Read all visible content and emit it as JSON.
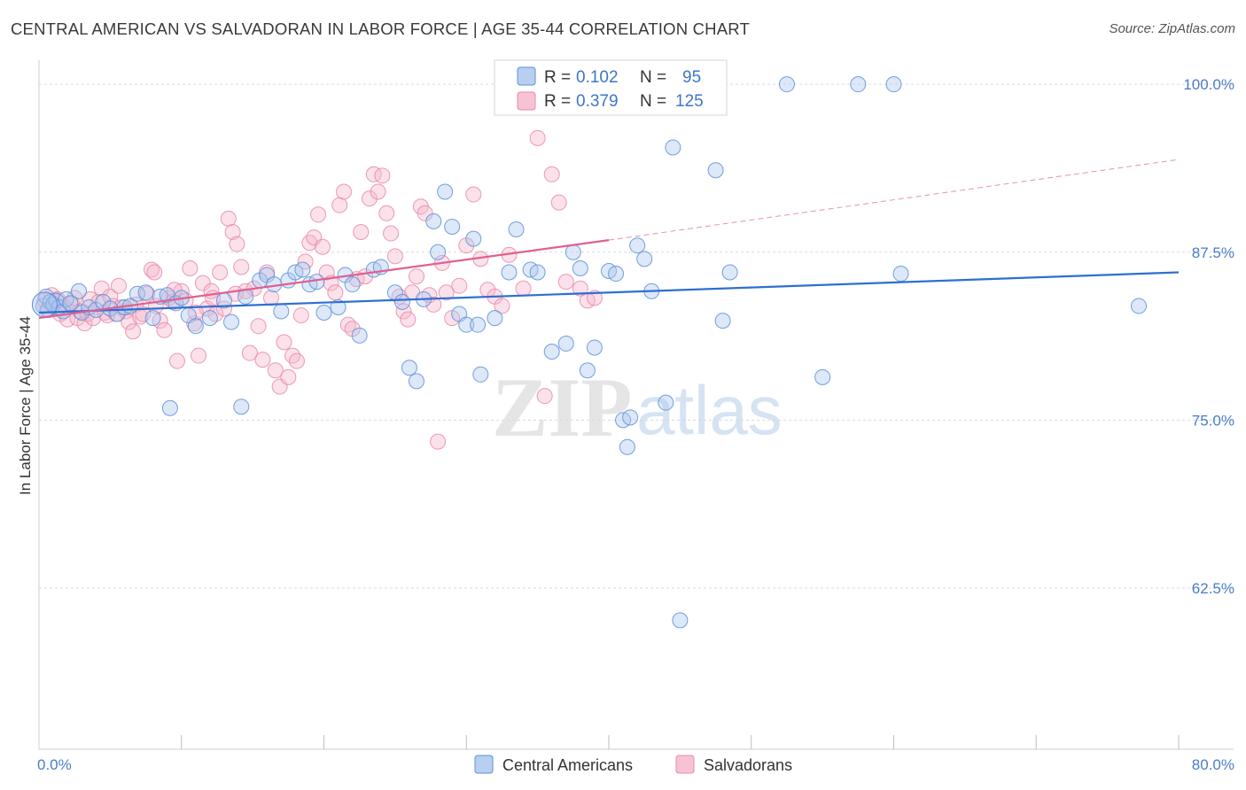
{
  "title": "CENTRAL AMERICAN VS SALVADORAN IN LABOR FORCE | AGE 35-44 CORRELATION CHART",
  "source": "Source: ZipAtlas.com",
  "watermark": {
    "zip": "ZIP",
    "atlas": "atlas"
  },
  "legend_top": [
    {
      "r_label": "R =",
      "r_value": "0.102",
      "n_label": "N =",
      "n_value": "95"
    },
    {
      "r_label": "R =",
      "r_value": "0.379",
      "n_label": "N =",
      "n_value": "125"
    }
  ],
  "chart_data": {
    "type": "scatter",
    "title": "CENTRAL AMERICAN VS SALVADORAN IN LABOR FORCE | AGE 35-44 CORRELATION CHART",
    "xlabel": "",
    "ylabel": "In Labor Force | Age 35-44",
    "xlim": [
      0,
      80
    ],
    "ylim": [
      50.5,
      101
    ],
    "x_tick_labels": [
      "0.0%",
      "80.0%"
    ],
    "y_ticks": [
      62.5,
      75.0,
      87.5,
      100.0
    ],
    "y_tick_labels": [
      "62.5%",
      "75.0%",
      "87.5%",
      "100.0%"
    ],
    "grid": "horizontal dashed",
    "legend": "bottom-center",
    "colors": {
      "central": "#5b8fd8",
      "salvadoran": "#e888a8",
      "central_line": "#2e6fd0",
      "salvadoran_line": "#e06090"
    },
    "series": [
      {
        "name": "Central Americans",
        "r": 0.102,
        "n": 95,
        "trend": {
          "x0": 0,
          "y0": 83.0,
          "x1": 80,
          "y1": 86.0
        },
        "points": [
          [
            0.3,
            83.5
          ],
          [
            0.5,
            84.2
          ],
          [
            0.6,
            83.2
          ],
          [
            0.8,
            83.8
          ],
          [
            1.0,
            83.6
          ],
          [
            1.2,
            83.9
          ],
          [
            1.4,
            83.4
          ],
          [
            1.7,
            83.1
          ],
          [
            1.9,
            84.0
          ],
          [
            2.2,
            83.7
          ],
          [
            2.8,
            84.6
          ],
          [
            3.0,
            83.0
          ],
          [
            3.5,
            83.4
          ],
          [
            4.0,
            83.2
          ],
          [
            4.5,
            83.8
          ],
          [
            5.0,
            83.3
          ],
          [
            5.5,
            82.9
          ],
          [
            6.0,
            83.4
          ],
          [
            6.4,
            83.5
          ],
          [
            6.9,
            84.4
          ],
          [
            7.5,
            84.5
          ],
          [
            8.0,
            82.6
          ],
          [
            8.5,
            84.2
          ],
          [
            9.0,
            84.3
          ],
          [
            9.6,
            83.7
          ],
          [
            10.0,
            84.1
          ],
          [
            10.5,
            82.8
          ],
          [
            11.0,
            82.0
          ],
          [
            12.0,
            82.6
          ],
          [
            13.0,
            83.9
          ],
          [
            13.5,
            82.3
          ],
          [
            14.5,
            84.2
          ],
          [
            15.5,
            85.4
          ],
          [
            16.0,
            85.8
          ],
          [
            16.5,
            85.1
          ],
          [
            17.0,
            83.1
          ],
          [
            17.5,
            85.4
          ],
          [
            18.0,
            86.0
          ],
          [
            18.5,
            86.2
          ],
          [
            19.0,
            85.1
          ],
          [
            19.5,
            85.3
          ],
          [
            20.0,
            83.0
          ],
          [
            21.0,
            83.4
          ],
          [
            21.5,
            85.8
          ],
          [
            22.0,
            85.1
          ],
          [
            22.5,
            81.3
          ],
          [
            23.5,
            86.2
          ],
          [
            24.0,
            86.4
          ],
          [
            25.0,
            84.5
          ],
          [
            25.5,
            83.8
          ],
          [
            26.0,
            78.9
          ],
          [
            26.5,
            77.9
          ],
          [
            27.0,
            84.0
          ],
          [
            27.7,
            89.8
          ],
          [
            28.0,
            87.5
          ],
          [
            28.5,
            92.0
          ],
          [
            29.0,
            89.4
          ],
          [
            29.5,
            82.9
          ],
          [
            30.0,
            82.1
          ],
          [
            30.5,
            88.5
          ],
          [
            30.8,
            82.1
          ],
          [
            31.0,
            78.4
          ],
          [
            32.0,
            82.6
          ],
          [
            33.0,
            86.0
          ],
          [
            33.5,
            89.2
          ],
          [
            34.5,
            86.2
          ],
          [
            35.0,
            86.0
          ],
          [
            36.0,
            80.1
          ],
          [
            37.0,
            80.7
          ],
          [
            37.5,
            87.5
          ],
          [
            38.0,
            86.3
          ],
          [
            38.5,
            78.7
          ],
          [
            39.0,
            80.4
          ],
          [
            40.0,
            86.1
          ],
          [
            40.5,
            85.9
          ],
          [
            41.0,
            75.0
          ],
          [
            41.3,
            73.0
          ],
          [
            41.5,
            75.2
          ],
          [
            42.0,
            88.0
          ],
          [
            42.5,
            87.0
          ],
          [
            43.0,
            84.6
          ],
          [
            44.0,
            76.3
          ],
          [
            44.5,
            95.3
          ],
          [
            45.0,
            60.1
          ],
          [
            47.5,
            93.6
          ],
          [
            48.0,
            82.4
          ],
          [
            48.5,
            86.0
          ],
          [
            52.5,
            100.0
          ],
          [
            57.5,
            100.0
          ],
          [
            60.0,
            100.0
          ],
          [
            60.5,
            85.9
          ],
          [
            77.2,
            83.5
          ],
          [
            55.0,
            78.2
          ],
          [
            14.2,
            76.0
          ],
          [
            9.2,
            75.9
          ]
        ]
      },
      {
        "name": "Salvadorans",
        "r": 0.379,
        "n": 125,
        "trend": {
          "x0": 0,
          "y0": 82.6,
          "x1": 40,
          "y1": 88.4
        },
        "trend_extension": {
          "x0": 40,
          "y0": 88.4,
          "x1": 80,
          "y1": 94.4
        },
        "points": [
          [
            0.4,
            83.9
          ],
          [
            0.7,
            83.2
          ],
          [
            0.9,
            84.3
          ],
          [
            1.1,
            83.5
          ],
          [
            1.3,
            84.0
          ],
          [
            1.5,
            82.9
          ],
          [
            1.8,
            83.4
          ],
          [
            2.0,
            82.5
          ],
          [
            2.3,
            83.7
          ],
          [
            2.5,
            84.1
          ],
          [
            2.7,
            82.6
          ],
          [
            2.9,
            83.1
          ],
          [
            3.2,
            82.2
          ],
          [
            3.4,
            82.9
          ],
          [
            3.6,
            84.0
          ],
          [
            3.8,
            82.6
          ],
          [
            4.2,
            83.8
          ],
          [
            4.4,
            84.8
          ],
          [
            4.6,
            83.0
          ],
          [
            4.8,
            82.8
          ],
          [
            5.0,
            84.2
          ],
          [
            5.2,
            83.5
          ],
          [
            5.4,
            82.9
          ],
          [
            5.6,
            85.0
          ],
          [
            5.8,
            83.4
          ],
          [
            6.1,
            83.1
          ],
          [
            6.3,
            82.3
          ],
          [
            6.6,
            81.6
          ],
          [
            6.8,
            83.6
          ],
          [
            7.1,
            82.7
          ],
          [
            7.3,
            82.9
          ],
          [
            7.6,
            84.4
          ],
          [
            7.9,
            86.2
          ],
          [
            8.2,
            83.5
          ],
          [
            8.5,
            82.4
          ],
          [
            8.8,
            81.7
          ],
          [
            9.1,
            84.1
          ],
          [
            9.4,
            83.8
          ],
          [
            9.7,
            79.4
          ],
          [
            10.0,
            84.6
          ],
          [
            10.3,
            83.9
          ],
          [
            10.6,
            86.3
          ],
          [
            10.9,
            82.2
          ],
          [
            11.2,
            79.8
          ],
          [
            11.5,
            85.2
          ],
          [
            11.8,
            83.3
          ],
          [
            12.1,
            84.6
          ],
          [
            12.4,
            82.9
          ],
          [
            12.7,
            86.0
          ],
          [
            13.0,
            83.3
          ],
          [
            13.3,
            90.0
          ],
          [
            13.6,
            89.0
          ],
          [
            13.9,
            88.1
          ],
          [
            14.2,
            86.4
          ],
          [
            14.5,
            84.6
          ],
          [
            14.8,
            80.0
          ],
          [
            15.1,
            84.8
          ],
          [
            15.4,
            82.0
          ],
          [
            15.7,
            79.5
          ],
          [
            16.0,
            86.0
          ],
          [
            16.3,
            84.1
          ],
          [
            16.6,
            78.7
          ],
          [
            16.9,
            77.5
          ],
          [
            17.2,
            80.8
          ],
          [
            17.5,
            78.2
          ],
          [
            17.8,
            79.8
          ],
          [
            18.1,
            79.4
          ],
          [
            18.4,
            82.8
          ],
          [
            18.7,
            86.8
          ],
          [
            19.0,
            88.2
          ],
          [
            19.3,
            88.6
          ],
          [
            19.6,
            90.3
          ],
          [
            19.9,
            87.9
          ],
          [
            20.2,
            86.0
          ],
          [
            20.5,
            85.2
          ],
          [
            20.8,
            84.5
          ],
          [
            21.1,
            91.0
          ],
          [
            21.4,
            92.0
          ],
          [
            21.7,
            82.1
          ],
          [
            22.0,
            81.8
          ],
          [
            22.3,
            85.5
          ],
          [
            22.6,
            89.0
          ],
          [
            22.9,
            85.7
          ],
          [
            23.2,
            91.5
          ],
          [
            23.5,
            93.3
          ],
          [
            23.8,
            92.0
          ],
          [
            24.1,
            93.2
          ],
          [
            24.4,
            90.4
          ],
          [
            24.7,
            88.9
          ],
          [
            25.0,
            87.2
          ],
          [
            25.3,
            84.2
          ],
          [
            25.6,
            83.1
          ],
          [
            25.9,
            82.5
          ],
          [
            26.2,
            84.5
          ],
          [
            26.5,
            85.7
          ],
          [
            26.8,
            90.9
          ],
          [
            27.1,
            90.4
          ],
          [
            27.4,
            84.3
          ],
          [
            27.7,
            83.6
          ],
          [
            28.0,
            73.4
          ],
          [
            28.3,
            86.7
          ],
          [
            28.6,
            84.5
          ],
          [
            29.0,
            82.6
          ],
          [
            29.5,
            85.0
          ],
          [
            30.0,
            88.0
          ],
          [
            30.5,
            91.8
          ],
          [
            31.0,
            87.0
          ],
          [
            31.5,
            84.7
          ],
          [
            32.0,
            84.2
          ],
          [
            32.5,
            83.5
          ],
          [
            33.0,
            87.3
          ],
          [
            34.0,
            84.8
          ],
          [
            35.0,
            96.0
          ],
          [
            35.5,
            76.8
          ],
          [
            36.0,
            93.3
          ],
          [
            36.5,
            91.2
          ],
          [
            37.0,
            85.3
          ],
          [
            38.0,
            84.8
          ],
          [
            38.5,
            83.9
          ],
          [
            39.0,
            84.1
          ],
          [
            8.1,
            86.0
          ],
          [
            9.5,
            84.7
          ],
          [
            11.0,
            83.0
          ],
          [
            12.2,
            84.1
          ],
          [
            13.8,
            84.4
          ]
        ]
      }
    ]
  },
  "legend_bottom": [
    {
      "label": "Central Americans",
      "color": "#5b8fd8"
    },
    {
      "label": "Salvadorans",
      "color": "#e888a8"
    }
  ]
}
